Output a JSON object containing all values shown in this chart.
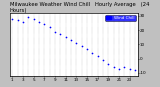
{
  "title": "Milwaukee Weather Wind Chill   Hourly Average   (24 Hours)",
  "hours": [
    1,
    2,
    3,
    4,
    5,
    6,
    7,
    8,
    9,
    10,
    11,
    12,
    13,
    14,
    15,
    16,
    17,
    18,
    19,
    20,
    21,
    22,
    23,
    24
  ],
  "wind_chill": [
    28,
    27,
    26,
    29,
    28,
    26,
    24,
    22,
    19,
    17,
    15,
    13,
    11,
    9,
    7,
    4,
    2,
    -1,
    -4,
    -6,
    -7,
    -6,
    -7,
    -8
  ],
  "dot_color": "#0000ff",
  "bg_color": "#000000",
  "plot_bg": "#ffffff",
  "grid_color": "#888888",
  "legend_bg": "#0000ff",
  "legend_fg": "#ffffff",
  "ylim": [
    -12,
    32
  ],
  "yticks": [
    30,
    20,
    10,
    0,
    -10
  ],
  "ytick_labels": [
    "30",
    "20",
    "10",
    "0",
    "-10"
  ],
  "title_fontsize": 3.8,
  "tick_fontsize": 3.0,
  "dot_size": 1.5,
  "legend_label": "Wind Chill",
  "outer_bg": "#c0c0c0"
}
